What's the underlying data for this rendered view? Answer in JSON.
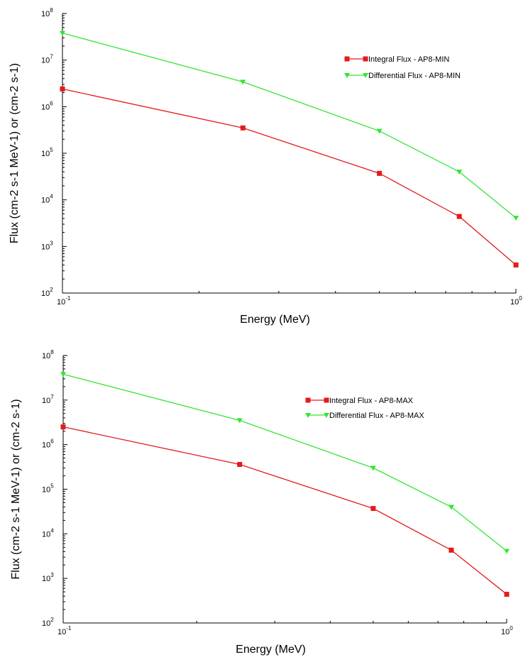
{
  "chart_data": [
    {
      "type": "line",
      "xscale": "log",
      "yscale": "log",
      "xlabel": "Energy (MeV)",
      "ylabel": "Flux (cm-2 s-1 MeV-1) or (cm-2 s-1)",
      "xlim": [
        0.1,
        1.0
      ],
      "ylim": [
        100,
        100000000
      ],
      "x_ticks": [
        {
          "base": "10",
          "exp": "-1"
        },
        {
          "base": "10",
          "exp": "0"
        }
      ],
      "y_ticks": [
        {
          "base": "10",
          "exp": "2"
        },
        {
          "base": "10",
          "exp": "3"
        },
        {
          "base": "10",
          "exp": "4"
        },
        {
          "base": "10",
          "exp": "5"
        },
        {
          "base": "10",
          "exp": "6"
        },
        {
          "base": "10",
          "exp": "7"
        },
        {
          "base": "10",
          "exp": "8"
        }
      ],
      "grid": false,
      "legend_position": "top-right",
      "series": [
        {
          "name": "Integral Flux - AP8-MIN",
          "color": "#e31a1c",
          "marker": "square",
          "x": [
            0.1,
            0.25,
            0.5,
            0.75,
            1.0
          ],
          "y": [
            2400000,
            350000,
            37000,
            4400,
            400
          ]
        },
        {
          "name": "Differential Flux - AP8-MIN",
          "color": "#33e533",
          "marker": "triangle-down",
          "x": [
            0.1,
            0.25,
            0.5,
            0.75,
            1.0
          ],
          "y": [
            38000000,
            3400000,
            300000,
            40000,
            4100
          ]
        }
      ]
    },
    {
      "type": "line",
      "xscale": "log",
      "yscale": "log",
      "xlabel": "Energy (MeV)",
      "ylabel": "Flux (cm-2 s-1 MeV-1) or (cm-2 s-1)",
      "xlim": [
        0.1,
        1.0
      ],
      "ylim": [
        100,
        100000000
      ],
      "x_ticks": [
        {
          "base": "10",
          "exp": "-1"
        },
        {
          "base": "10",
          "exp": "0"
        }
      ],
      "y_ticks": [
        {
          "base": "10",
          "exp": "2"
        },
        {
          "base": "10",
          "exp": "3"
        },
        {
          "base": "10",
          "exp": "4"
        },
        {
          "base": "10",
          "exp": "5"
        },
        {
          "base": "10",
          "exp": "6"
        },
        {
          "base": "10",
          "exp": "7"
        },
        {
          "base": "10",
          "exp": "8"
        }
      ],
      "grid": false,
      "legend_position": "top-right",
      "series": [
        {
          "name": "Integral Flux - AP8-MAX",
          "color": "#e31a1c",
          "marker": "square",
          "x": [
            0.1,
            0.25,
            0.5,
            0.75,
            1.0
          ],
          "y": [
            2500000,
            360000,
            37000,
            4300,
            440
          ]
        },
        {
          "name": "Differential Flux - AP8-MAX",
          "color": "#33e533",
          "marker": "triangle-down",
          "x": [
            0.1,
            0.25,
            0.5,
            0.75,
            1.0
          ],
          "y": [
            38000000,
            3500000,
            300000,
            40000,
            4100
          ]
        }
      ]
    }
  ]
}
